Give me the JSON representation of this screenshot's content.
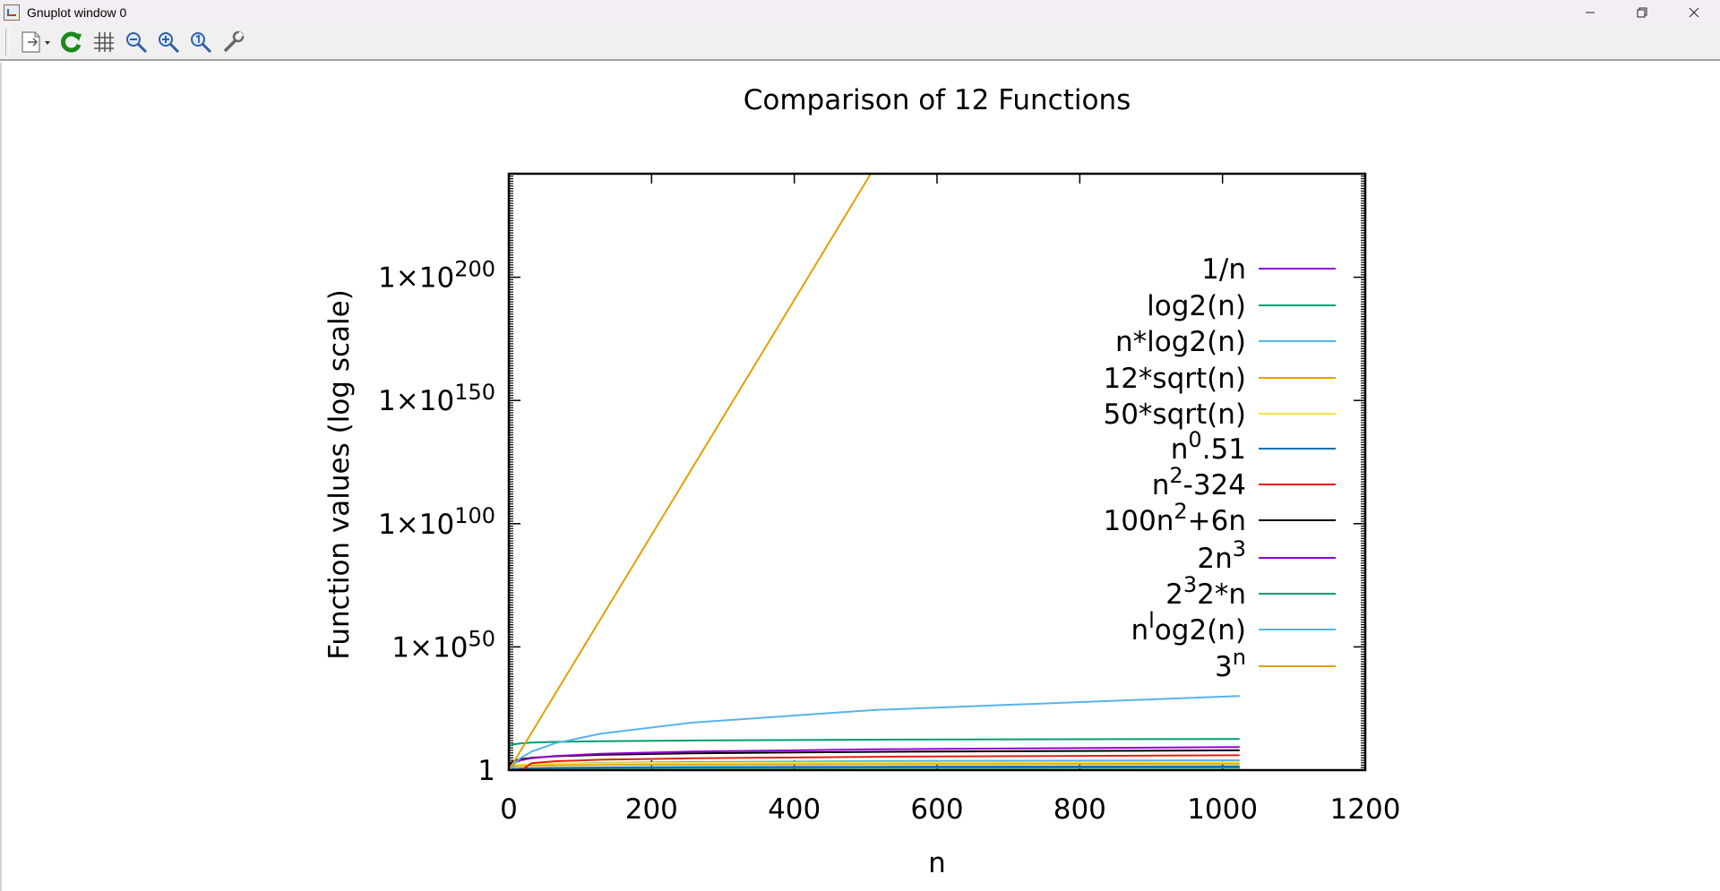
{
  "window": {
    "title": "Gnuplot window 0",
    "controls": [
      "minimize",
      "restore",
      "close"
    ]
  },
  "toolbar": {
    "buttons": [
      {
        "name": "copy-print-menu-button",
        "icon": "document-dropdown-icon"
      },
      {
        "name": "replot-button",
        "icon": "refresh-icon"
      },
      {
        "name": "grid-button",
        "icon": "grid-icon"
      },
      {
        "name": "zoom-back-button",
        "icon": "zoom-out-icon"
      },
      {
        "name": "zoom-forward-button",
        "icon": "zoom-in-icon"
      },
      {
        "name": "autoscale-button",
        "icon": "zoom-reset-icon"
      },
      {
        "name": "options-button",
        "icon": "wrench-icon"
      }
    ]
  },
  "chart_data": {
    "type": "line",
    "title": "Comparison of 12 Functions",
    "xlabel": "n",
    "ylabel": "Function values (log scale)",
    "xlim": [
      0,
      1200
    ],
    "ylim_log10": [
      0,
      242
    ],
    "y_log_scale": true,
    "x_ticks": [
      "0",
      "200",
      "400",
      "600",
      "800",
      "1000",
      "1200"
    ],
    "y_ticks": [
      {
        "log10": 0,
        "base": "1",
        "exp": ""
      },
      {
        "log10": 50,
        "base": "1×10",
        "exp": "50"
      },
      {
        "log10": 100,
        "base": "1×10",
        "exp": "100"
      },
      {
        "log10": 150,
        "base": "1×10",
        "exp": "150"
      },
      {
        "log10": 200,
        "base": "1×10",
        "exp": "200"
      }
    ],
    "legend_position": "top-right",
    "grid": false,
    "series": [
      {
        "label": "1/n",
        "color": "#9400d3",
        "x": [
          1,
          2,
          4,
          8,
          16,
          32,
          64,
          128,
          256,
          512,
          1024
        ],
        "log10_y": [
          0,
          -0.3,
          -0.6,
          -0.9,
          -1.2,
          -1.5,
          -1.81,
          -2.11,
          -2.41,
          -2.71,
          -3.01
        ]
      },
      {
        "label": "log2(n)",
        "color": "#009e73",
        "x": [
          1,
          2,
          4,
          8,
          16,
          32,
          64,
          128,
          256,
          512,
          1024
        ],
        "log10_y": [
          -3,
          0,
          0.3,
          0.48,
          0.6,
          0.7,
          0.78,
          0.85,
          0.9,
          0.95,
          1.0
        ]
      },
      {
        "label": "n*log2(n)",
        "color": "#56b4e9",
        "x": [
          1,
          2,
          4,
          8,
          16,
          32,
          64,
          128,
          256,
          512,
          1024
        ],
        "log10_y": [
          -3,
          0.3,
          0.9,
          1.38,
          1.81,
          2.2,
          2.58,
          2.95,
          3.31,
          3.66,
          4.01
        ]
      },
      {
        "label": "12*sqrt(n)",
        "color": "#e69f00",
        "x": [
          1,
          2,
          4,
          8,
          16,
          32,
          64,
          128,
          256,
          512,
          1024
        ],
        "log10_y": [
          1.08,
          1.23,
          1.38,
          1.53,
          1.68,
          1.83,
          1.98,
          2.13,
          2.28,
          2.43,
          2.58
        ]
      },
      {
        "label": "50*sqrt(n)",
        "color": "#f0e442",
        "x": [
          1,
          2,
          4,
          8,
          16,
          32,
          64,
          128,
          256,
          512,
          1024
        ],
        "log10_y": [
          1.7,
          1.85,
          2.0,
          2.15,
          2.3,
          2.45,
          2.6,
          2.75,
          2.9,
          3.05,
          3.2
        ]
      },
      {
        "label": "n^0.51",
        "label_base": "n",
        "label_sup": "0",
        "label_tail": ".51",
        "color": "#0072b2",
        "x": [
          1,
          2,
          4,
          8,
          16,
          32,
          64,
          128,
          256,
          512,
          1024
        ],
        "log10_y": [
          0,
          0.15,
          0.31,
          0.46,
          0.61,
          0.77,
          0.92,
          1.07,
          1.23,
          1.38,
          1.54
        ]
      },
      {
        "label": "n^2-324",
        "label_base": "n",
        "label_sup": "2",
        "label_tail": "-324",
        "color": "#e51e10",
        "x": [
          18,
          32,
          64,
          128,
          256,
          512,
          1024
        ],
        "log10_y": [
          0,
          2.85,
          3.59,
          4.21,
          4.81,
          5.42,
          6.02
        ]
      },
      {
        "label": "100n^2+6n",
        "label_base": "100n",
        "label_sup": "2",
        "label_tail": "+6n",
        "color": "#000000",
        "x": [
          1,
          2,
          4,
          8,
          16,
          32,
          64,
          128,
          256,
          512,
          1024
        ],
        "log10_y": [
          2.03,
          2.61,
          3.21,
          3.81,
          4.41,
          5.01,
          5.61,
          6.22,
          6.82,
          7.42,
          8.02
        ]
      },
      {
        "label": "2n^3",
        "label_base": "2n",
        "label_sup": "3",
        "label_tail": "",
        "color": "#9400d3",
        "x": [
          1,
          2,
          4,
          8,
          16,
          32,
          64,
          128,
          256,
          512,
          1024
        ],
        "log10_y": [
          0.3,
          1.2,
          2.11,
          3.01,
          3.91,
          4.82,
          5.72,
          6.62,
          7.53,
          8.43,
          9.33
        ]
      },
      {
        "label": "2^32*n",
        "label_base": "2",
        "label_sup": "3",
        "label_tail": "2*n",
        "color": "#009e73",
        "x": [
          1,
          2,
          4,
          8,
          16,
          32,
          64,
          128,
          256,
          512,
          1024
        ],
        "log10_y": [
          9.63,
          9.93,
          10.24,
          10.54,
          10.84,
          11.14,
          11.44,
          11.74,
          12.04,
          12.34,
          12.64
        ]
      },
      {
        "label": "n^log2(n)",
        "label_base": "n",
        "label_sup": "l",
        "label_tail": "og2(n)",
        "color": "#56b4e9",
        "x": [
          1,
          2,
          4,
          8,
          16,
          32,
          64,
          128,
          256,
          512,
          1024
        ],
        "log10_y": [
          0,
          0.3,
          1.2,
          2.71,
          4.82,
          7.53,
          10.84,
          14.75,
          19.27,
          24.38,
          30.1
        ]
      },
      {
        "label": "3^n",
        "label_base": "3",
        "label_sup": "n",
        "label_tail": "",
        "color": "#e69f00",
        "x": [
          1,
          100,
          200,
          300,
          400,
          500,
          600
        ],
        "log10_y": [
          0.48,
          47.7,
          95.4,
          143.1,
          190.8,
          238.6,
          286.3
        ]
      }
    ]
  }
}
